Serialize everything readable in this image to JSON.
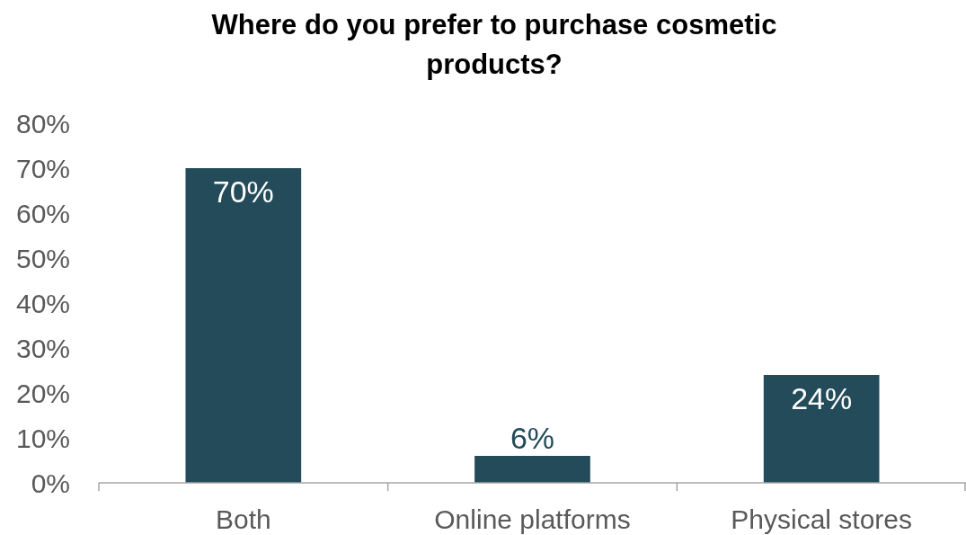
{
  "chart_data": {
    "type": "bar",
    "title": "Where do you prefer to purchase cosmetic products?",
    "categories": [
      "Both",
      "Online platforms",
      "Physical stores"
    ],
    "values": [
      70,
      6,
      24
    ],
    "color": "#234b59",
    "value_labels": [
      "70%",
      "6%",
      "24%"
    ],
    "ylim": [
      0,
      80
    ],
    "yticks": [
      {
        "value": 0,
        "label": "0%"
      },
      {
        "value": 10,
        "label": "10%"
      },
      {
        "value": 20,
        "label": "20%"
      },
      {
        "value": 30,
        "label": "30%"
      },
      {
        "value": 40,
        "label": "40%"
      },
      {
        "value": 50,
        "label": "50%"
      },
      {
        "value": 60,
        "label": "60%"
      },
      {
        "value": 70,
        "label": "70%"
      },
      {
        "value": 80,
        "label": "80%"
      }
    ],
    "grid": false
  }
}
